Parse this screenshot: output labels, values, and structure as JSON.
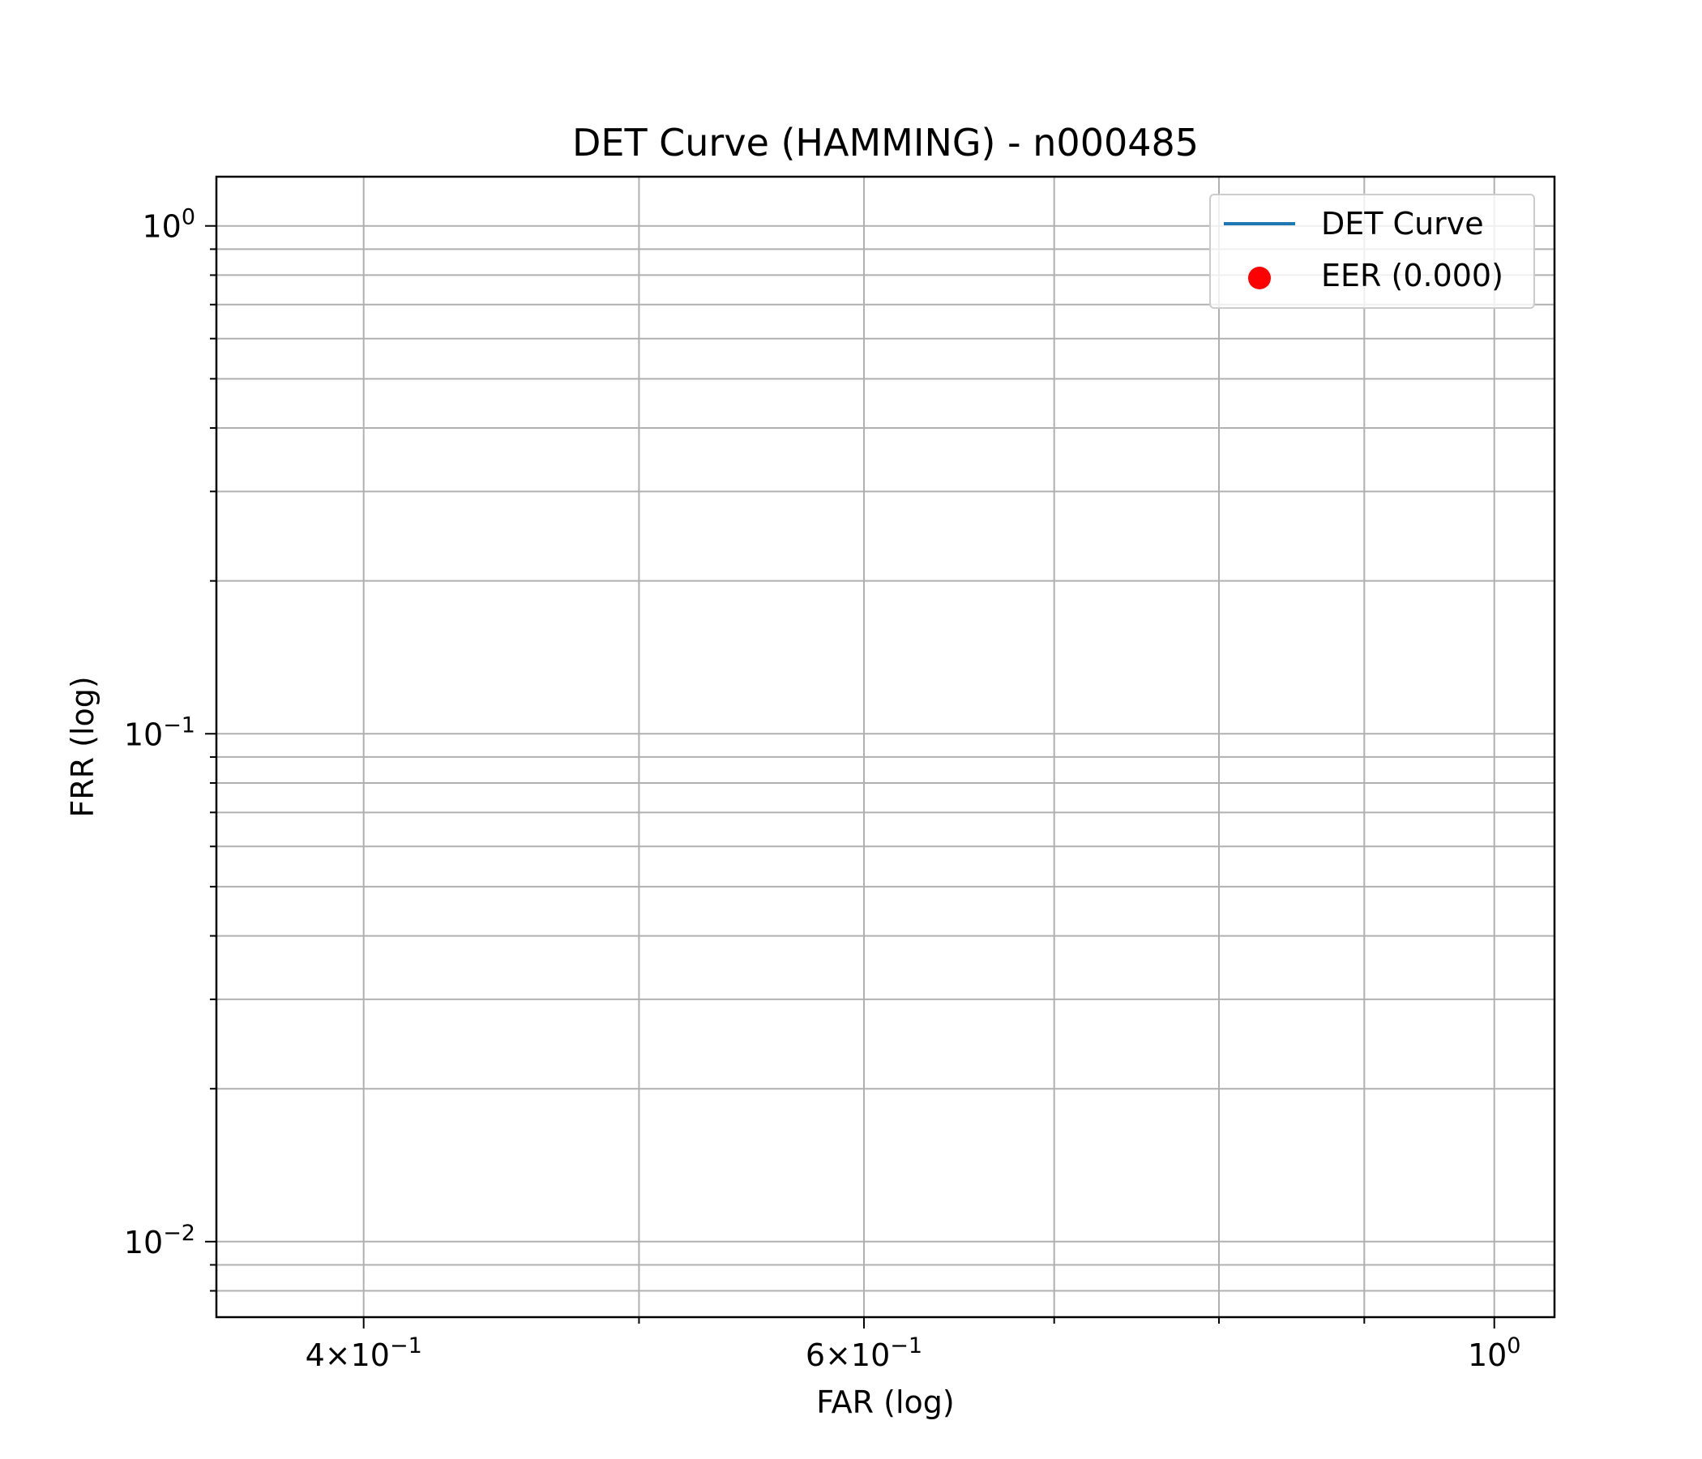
{
  "chart_data": {
    "type": "line",
    "title": "DET Curve (HAMMING) - n000485",
    "xlabel": "FAR (log)",
    "ylabel": "FRR (log)",
    "xscale": "log",
    "yscale": "log",
    "xlim": [
      0.355,
      1.05
    ],
    "ylim": [
      0.0071,
      1.25
    ],
    "grid": true,
    "grid_minor": true,
    "legend_position": "top-right",
    "x_major_ticks": [
      {
        "value": 0.4,
        "mant": "4",
        "exp": "−1"
      },
      {
        "value": 0.6,
        "mant": "6",
        "exp": "−1"
      },
      {
        "value": 1.0,
        "mant": "",
        "exp": "0"
      }
    ],
    "x_minor_ticks": [
      0.5,
      0.7,
      0.8,
      0.9
    ],
    "y_major_ticks": [
      {
        "value": 1.0,
        "exp": "0"
      },
      {
        "value": 0.1,
        "exp": "−1"
      },
      {
        "value": 0.01,
        "exp": "−2"
      }
    ],
    "y_minor_ticks": [
      0.008,
      0.009,
      0.02,
      0.03,
      0.04,
      0.05,
      0.06,
      0.07,
      0.08,
      0.09,
      0.2,
      0.3,
      0.4,
      0.5,
      0.6,
      0.7,
      0.8,
      0.9
    ],
    "series": [
      {
        "name": "DET Curve",
        "kind": "line",
        "color": "#1f77b4",
        "x": [],
        "y": []
      },
      {
        "name": "EER (0.000)",
        "kind": "scatter",
        "color": "#ff0000",
        "x": [],
        "y": []
      }
    ]
  }
}
